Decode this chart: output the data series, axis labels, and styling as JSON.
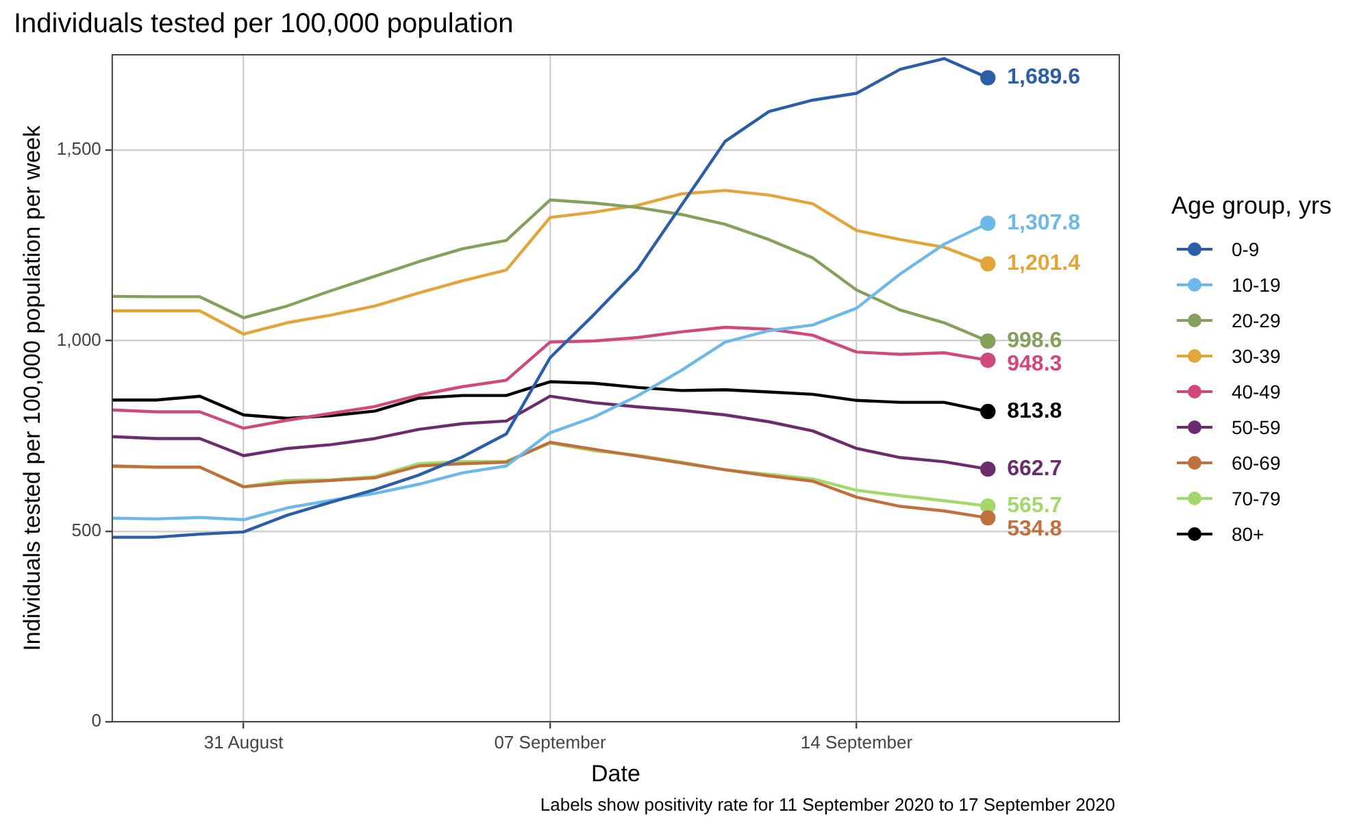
{
  "chart_data": {
    "type": "line",
    "title": "Individuals tested per 100,000 population",
    "xlabel": "Date",
    "ylabel": "Individuals tested per 100,000 population per week",
    "legend_title": "Age group, yrs",
    "annotations": [
      "Labels show positivity rate for 11 September 2020 to 17 September 2020"
    ],
    "x": [
      "2020-08-28",
      "2020-08-29",
      "2020-08-30",
      "2020-08-31",
      "2020-09-01",
      "2020-09-02",
      "2020-09-03",
      "2020-09-04",
      "2020-09-05",
      "2020-09-06",
      "2020-09-07",
      "2020-09-08",
      "2020-09-09",
      "2020-09-10",
      "2020-09-11",
      "2020-09-12",
      "2020-09-13",
      "2020-09-14",
      "2020-09-15",
      "2020-09-16",
      "2020-09-17"
    ],
    "series": [
      {
        "name": "0-9",
        "color": "#2b5ea7",
        "values": [
          484,
          484,
          492,
          498,
          542,
          576,
          609,
          647,
          695,
          755,
          955,
          1068,
          1187,
          1355,
          1523,
          1601,
          1631,
          1649,
          1712,
          1740,
          1689.6
        ],
        "value_labels": [
          null,
          null,
          null,
          null,
          null,
          null,
          null,
          null,
          null,
          null,
          null,
          null,
          null,
          null,
          null,
          null,
          null,
          null,
          null,
          null,
          "1,689.6"
        ]
      },
      {
        "name": "10-19",
        "color": "#6cb8e8",
        "values": [
          534,
          532,
          536,
          530,
          561,
          581,
          599,
          623,
          653,
          671,
          758,
          799,
          855,
          922,
          996,
          1026,
          1041,
          1085,
          1175,
          1253,
          1307.8
        ],
        "value_labels": [
          null,
          null,
          null,
          null,
          null,
          null,
          null,
          null,
          null,
          null,
          null,
          null,
          null,
          null,
          null,
          null,
          null,
          null,
          null,
          null,
          "1,307.8"
        ]
      },
      {
        "name": "20-29",
        "color": "#84a05a",
        "values": [
          1116,
          1115,
          1115,
          1060,
          1091,
          1131,
          1169,
          1207,
          1241,
          1263,
          1369,
          1361,
          1349,
          1331,
          1305,
          1265,
          1217,
          1133,
          1080,
          1047,
          998.6
        ],
        "value_labels": [
          null,
          null,
          null,
          null,
          null,
          null,
          null,
          null,
          null,
          null,
          null,
          null,
          null,
          null,
          null,
          null,
          null,
          null,
          null,
          null,
          "998.6"
        ]
      },
      {
        "name": "30-39",
        "color": "#e3a43a",
        "values": [
          1078,
          1078,
          1078,
          1017,
          1047,
          1067,
          1091,
          1125,
          1157,
          1185,
          1323,
          1337,
          1355,
          1385,
          1394,
          1382,
          1359,
          1289,
          1265,
          1245,
          1201.4
        ],
        "value_labels": [
          null,
          null,
          null,
          null,
          null,
          null,
          null,
          null,
          null,
          null,
          null,
          null,
          null,
          null,
          null,
          null,
          null,
          null,
          null,
          null,
          "1,201.4"
        ]
      },
      {
        "name": "40-49",
        "color": "#d1497c",
        "values": [
          818,
          813,
          813,
          770,
          791,
          809,
          827,
          857,
          879,
          896,
          996,
          999,
          1008,
          1023,
          1035,
          1030,
          1014,
          970,
          964,
          968,
          948.3
        ],
        "value_labels": [
          null,
          null,
          null,
          null,
          null,
          null,
          null,
          null,
          null,
          null,
          null,
          null,
          null,
          null,
          null,
          null,
          null,
          null,
          null,
          null,
          "948.3"
        ]
      },
      {
        "name": "50-59",
        "color": "#6b2c6e",
        "values": [
          748,
          743,
          743,
          698,
          717,
          727,
          743,
          767,
          782,
          789,
          854,
          837,
          826,
          817,
          805,
          787,
          763,
          717,
          693,
          682,
          662.7
        ],
        "value_labels": [
          null,
          null,
          null,
          null,
          null,
          null,
          null,
          null,
          null,
          null,
          null,
          null,
          null,
          null,
          null,
          null,
          null,
          null,
          null,
          null,
          "662.7"
        ]
      },
      {
        "name": "60-69",
        "color": "#c0703e",
        "values": [
          671,
          668,
          668,
          616,
          627,
          633,
          640,
          671,
          677,
          681,
          733,
          715,
          697,
          679,
          661,
          645,
          631,
          589,
          565,
          553,
          534.8
        ],
        "value_labels": [
          null,
          null,
          null,
          null,
          null,
          null,
          null,
          null,
          null,
          null,
          null,
          null,
          null,
          null,
          null,
          null,
          null,
          null,
          null,
          null,
          "534.8"
        ]
      },
      {
        "name": "70-79",
        "color": "#a5d86a",
        "values": [
          669,
          668,
          668,
          617,
          633,
          635,
          643,
          677,
          683,
          683,
          731,
          711,
          699,
          681,
          661,
          649,
          637,
          607,
          593,
          580,
          565.7
        ],
        "value_labels": [
          null,
          null,
          null,
          null,
          null,
          null,
          null,
          null,
          null,
          null,
          null,
          null,
          null,
          null,
          null,
          null,
          null,
          null,
          null,
          null,
          "565.7"
        ]
      },
      {
        "name": "80+",
        "color": "#000000",
        "values": [
          844,
          844,
          854,
          805,
          796,
          803,
          815,
          849,
          856,
          856,
          892,
          888,
          877,
          869,
          871,
          865,
          859,
          843,
          838,
          838,
          813.8
        ],
        "value_labels": [
          null,
          null,
          null,
          null,
          null,
          null,
          null,
          null,
          null,
          null,
          null,
          null,
          null,
          null,
          null,
          null,
          null,
          null,
          null,
          null,
          "813.8"
        ]
      }
    ],
    "xlim": [
      "2020-08-28",
      "2020-09-20"
    ],
    "xticks": [
      {
        "value": "2020-08-31",
        "label": "31 August"
      },
      {
        "value": "2020-09-07",
        "label": "07 September"
      },
      {
        "value": "2020-09-14",
        "label": "14 September"
      }
    ],
    "ylim": [
      0,
      1750
    ],
    "yticks": [
      0,
      500,
      {
        "value": 1000,
        "label": "1,000"
      },
      {
        "value": 1500,
        "label": "1,500"
      }
    ],
    "grid": true,
    "legend": "right",
    "line_style": "solid"
  }
}
